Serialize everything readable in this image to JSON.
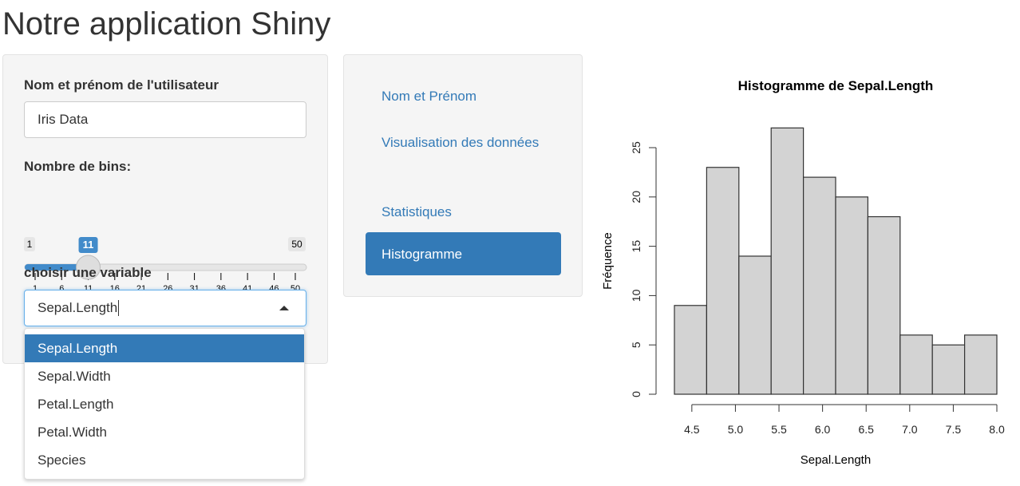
{
  "header": {
    "title": "Notre application Shiny"
  },
  "sidebar": {
    "text_input": {
      "label": "Nom et prénom de l'utilisateur",
      "value": "Iris Data"
    },
    "slider": {
      "label": "Nombre de bins:",
      "min": 1,
      "max": 50,
      "value": 11,
      "ticks": [
        1,
        6,
        11,
        16,
        21,
        26,
        31,
        36,
        41,
        46,
        50
      ]
    },
    "select": {
      "label": "choisir une variable",
      "selected": "Sepal.Length",
      "options": [
        "Sepal.Length",
        "Sepal.Width",
        "Petal.Length",
        "Petal.Width",
        "Species"
      ],
      "highlighted": 0
    }
  },
  "nav": {
    "items": [
      "Nom et Prénom",
      "Visualisation des données",
      "Statistiques",
      "Histogramme"
    ],
    "active": 3
  },
  "chart_data": {
    "type": "histogram",
    "title": "Histogramme de Sepal.Length",
    "x_label": "Sepal.Length",
    "y_label": "Fréquence",
    "bins": [
      4.3,
      4.67,
      5.04,
      5.41,
      5.78,
      6.15,
      6.52,
      6.89,
      7.26,
      7.63,
      8.0
    ],
    "values": [
      9,
      23,
      14,
      27,
      22,
      20,
      18,
      6,
      5,
      6
    ],
    "color": "#d3d3d3",
    "xlim": [
      4.3,
      8.0
    ],
    "xticks": [
      4.5,
      {
        "value": 5,
        "label": "5.0"
      },
      5.5,
      {
        "value": 6,
        "label": "6.0"
      },
      6.5,
      {
        "value": 7,
        "label": "7.0"
      },
      7.5,
      {
        "value": 8,
        "label": "8.0"
      }
    ],
    "ylim": [
      0,
      27
    ],
    "yticks": [
      0,
      5,
      10,
      15,
      20,
      25
    ]
  }
}
